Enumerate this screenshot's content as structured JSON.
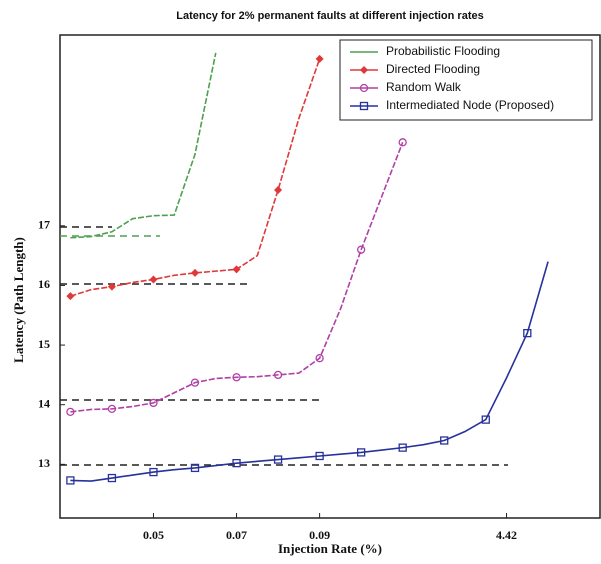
{
  "chart_data": {
    "type": "line",
    "title": "Latency for 2% permanent faults at different injection rates",
    "x_label": "Injection Rate (%)",
    "y_label": "Latency (Path Length)",
    "categories": [
      null,
      null,
      null,
      null,
      "0.05",
      null,
      null,
      null,
      "0.07",
      null,
      null,
      null,
      "0.09",
      null,
      null,
      null,
      null,
      null,
      null,
      null,
      null,
      "4.42",
      null,
      null,
      null,
      null
    ],
    "ylim": [
      12.1,
      20.2
    ],
    "yticks": [
      13,
      14,
      15,
      16,
      17
    ],
    "grid": false,
    "legend": "upper right",
    "series": [
      {
        "name": "Probabilistic Flooding",
        "color": "#4f9f52",
        "marker": "none",
        "values": [
          16.8,
          16.82,
          16.9,
          17.12,
          17.17,
          17.18,
          18.2,
          19.9,
          null,
          null,
          null,
          null,
          null,
          null,
          null,
          null,
          null,
          null,
          null,
          null,
          null,
          null,
          null,
          null,
          null,
          null
        ]
      },
      {
        "name": "Directed Flooding",
        "color": "#e03838",
        "marker": "diamond",
        "values": [
          15.82,
          15.93,
          15.98,
          16.05,
          16.1,
          16.17,
          16.21,
          16.24,
          16.27,
          16.5,
          17.6,
          18.8,
          19.8,
          null,
          null,
          null,
          null,
          null,
          null,
          null,
          null,
          null,
          null,
          null,
          null,
          null
        ]
      },
      {
        "name": "Random Walk",
        "color": "#b03fa6",
        "marker": "circle",
        "values": [
          13.88,
          13.92,
          13.93,
          13.97,
          14.03,
          14.2,
          14.37,
          14.44,
          14.46,
          14.47,
          14.5,
          14.53,
          14.78,
          15.6,
          16.6,
          17.5,
          18.4,
          null,
          null,
          null,
          null,
          null,
          null,
          null,
          null,
          null
        ]
      },
      {
        "name": "Intermediated Node (Proposed)",
        "color": "#27329a",
        "marker": "square",
        "values": [
          12.73,
          12.72,
          12.77,
          12.82,
          12.87,
          12.91,
          12.94,
          12.98,
          13.02,
          13.05,
          13.08,
          13.11,
          13.14,
          13.17,
          13.2,
          13.24,
          13.28,
          13.33,
          13.4,
          13.55,
          13.75,
          14.45,
          15.2,
          16.4,
          null,
          null
        ]
      }
    ]
  }
}
